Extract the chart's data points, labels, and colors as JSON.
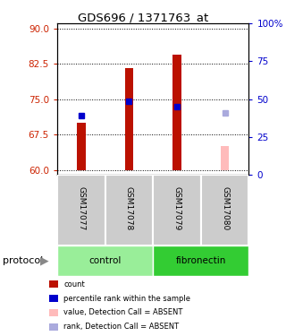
{
  "title": "GDS696 / 1371763_at",
  "samples": [
    "GSM17077",
    "GSM17078",
    "GSM17079",
    "GSM17080"
  ],
  "groups": [
    {
      "name": "control",
      "samples": [
        "GSM17077",
        "GSM17078"
      ],
      "color": "#99ee99"
    },
    {
      "name": "fibronectin",
      "samples": [
        "GSM17079",
        "GSM17080"
      ],
      "color": "#33cc33"
    }
  ],
  "bar_bottom": 60,
  "red_bars": {
    "GSM17077": 70.0,
    "GSM17078": 81.5,
    "GSM17079": 84.5,
    "GSM17080": null
  },
  "pink_bars": {
    "GSM17077": null,
    "GSM17078": null,
    "GSM17079": null,
    "GSM17080": 65.0
  },
  "blue_dots": {
    "GSM17077": 71.5,
    "GSM17078": 74.5,
    "GSM17079": 73.5,
    "GSM17080": null
  },
  "light_blue_dots": {
    "GSM17077": null,
    "GSM17078": null,
    "GSM17079": null,
    "GSM17080": 72.0
  },
  "ylim_left": [
    59,
    91
  ],
  "yticks_left": [
    60,
    67.5,
    75,
    82.5,
    90
  ],
  "ylim_right": [
    0,
    100
  ],
  "yticks_right": [
    0,
    25,
    50,
    75,
    100
  ],
  "ytick_labels_right": [
    "0",
    "25",
    "50",
    "75",
    "100%"
  ],
  "left_tick_color": "#cc2200",
  "right_tick_color": "#0000cc",
  "bar_color_red": "#bb1100",
  "bar_color_pink": "#ffbbbb",
  "dot_color_blue": "#0000cc",
  "dot_color_light_blue": "#aaaadd",
  "sample_bg_color": "#cccccc",
  "protocol_label": "protocol",
  "legend_items": [
    {
      "color": "#bb1100",
      "label": "count"
    },
    {
      "color": "#0000cc",
      "label": "percentile rank within the sample"
    },
    {
      "color": "#ffbbbb",
      "label": "value, Detection Call = ABSENT"
    },
    {
      "color": "#aaaadd",
      "label": "rank, Detection Call = ABSENT"
    }
  ]
}
